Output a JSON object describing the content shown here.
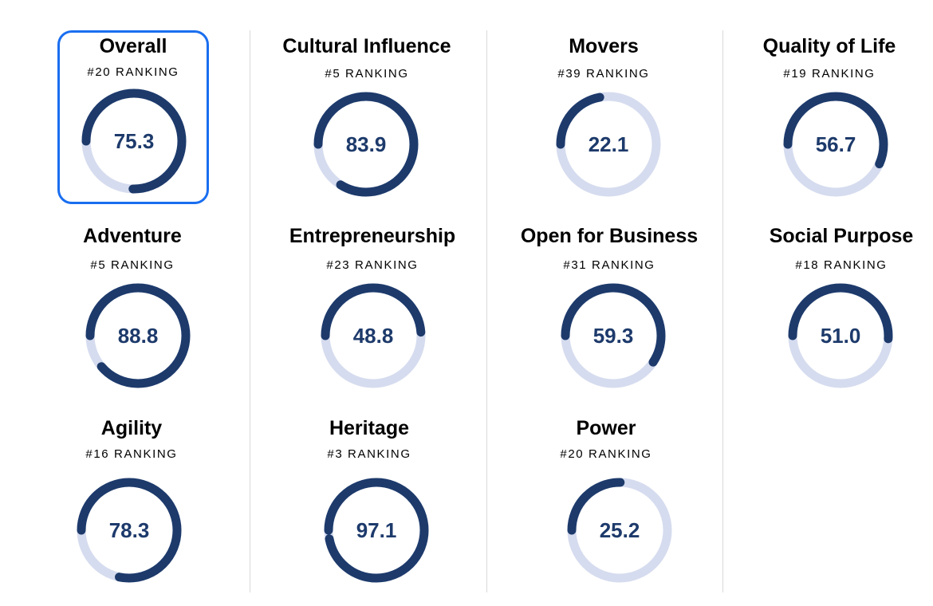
{
  "colors": {
    "track": "#d6dcef",
    "fill": "#1d3a6b",
    "selected_border": "#1a6ef0"
  },
  "metrics": [
    {
      "title": "Overall",
      "rank": "#20 RANKING",
      "score": "75.3",
      "value": 75.3
    },
    {
      "title": "Cultural Influence",
      "rank": "#5 RANKING",
      "score": "83.9",
      "value": 83.9
    },
    {
      "title": "Movers",
      "rank": "#39 RANKING",
      "score": "22.1",
      "value": 22.1
    },
    {
      "title": "Quality of Life",
      "rank": "#19 RANKING",
      "score": "56.7",
      "value": 56.7
    },
    {
      "title": "Adventure",
      "rank": "#5 RANKING",
      "score": "88.8",
      "value": 88.8
    },
    {
      "title": "Entrepreneurship",
      "rank": "#23 RANKING",
      "score": "48.8",
      "value": 48.8
    },
    {
      "title": "Open for Business",
      "rank": "#31 RANKING",
      "score": "59.3",
      "value": 59.3
    },
    {
      "title": "Social Purpose",
      "rank": "#18 RANKING",
      "score": "51.0",
      "value": 51.0
    },
    {
      "title": "Agility",
      "rank": "#16 RANKING",
      "score": "78.3",
      "value": 78.3
    },
    {
      "title": "Heritage",
      "rank": "#3 RANKING",
      "score": "97.1",
      "value": 97.1
    },
    {
      "title": "Power",
      "rank": "#20 RANKING",
      "score": "25.2",
      "value": 25.2
    }
  ]
}
